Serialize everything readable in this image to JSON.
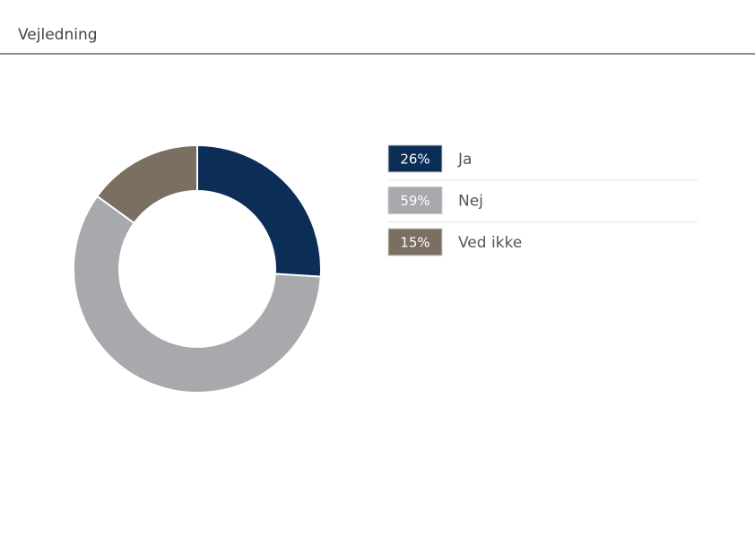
{
  "chart_data": {
    "type": "pie",
    "title": "Vejledning",
    "categories": [
      "Ja",
      "Nej",
      "Ved ikke"
    ],
    "values": [
      26,
      59,
      15
    ],
    "value_labels": [
      "26%",
      "59%",
      "15%"
    ],
    "colors": [
      "#0b2d56",
      "#a8a9ad",
      "#7b6f61"
    ],
    "donut": true
  }
}
